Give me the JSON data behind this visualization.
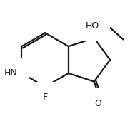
{
  "background": "#ffffff",
  "line_color": "#1a1a1a",
  "line_width": 1.6,
  "font_size": 9.0,
  "xlim": [
    0.03,
    0.93
  ],
  "ylim": [
    0.08,
    0.95
  ]
}
